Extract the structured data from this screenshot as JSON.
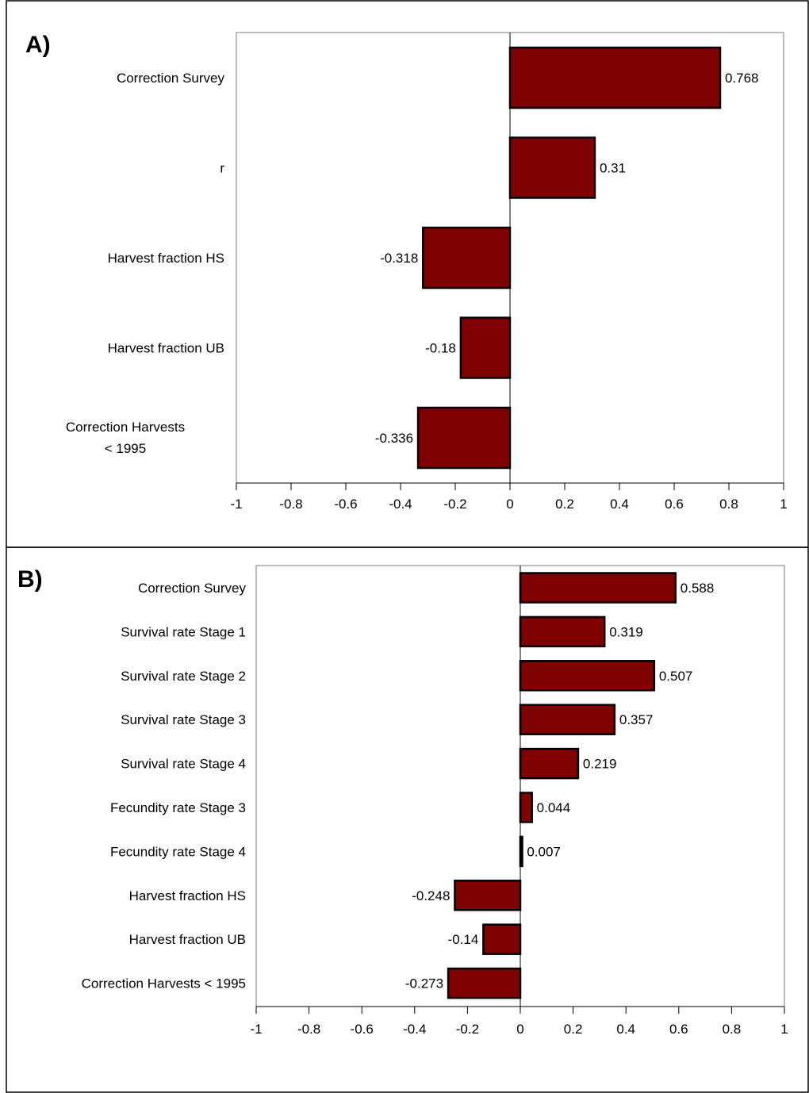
{
  "colors": {
    "bar": "#7f0000",
    "border": "#000000"
  },
  "chart_data": [
    {
      "panel_label": "A)",
      "type": "bar",
      "orientation": "horizontal",
      "title": "",
      "xlabel": "",
      "ylabel": "",
      "xlim": [
        -1,
        1
      ],
      "xticks": [
        -1,
        -0.8,
        -0.6,
        -0.4,
        -0.2,
        0,
        0.2,
        0.4,
        0.6,
        0.8,
        1
      ],
      "xtick_labels": [
        "-1",
        "-0.8",
        "-0.6",
        "-0.4",
        "-0.2",
        "0",
        "0.2",
        "0.4",
        "0.6",
        "0.8",
        "1"
      ],
      "grid": false,
      "legend": "none",
      "categories": [
        [
          "Correction Survey"
        ],
        [
          "r"
        ],
        [
          "Harvest fraction HS"
        ],
        [
          "Harvest fraction UB"
        ],
        [
          "Correction Harvests",
          "< 1995"
        ]
      ],
      "values": [
        0.768,
        0.31,
        -0.318,
        -0.18,
        -0.336
      ],
      "data_labels": [
        "0.768",
        "0.31",
        "-0.318",
        "-0.18",
        "-0.336"
      ]
    },
    {
      "panel_label": "B)",
      "type": "bar",
      "orientation": "horizontal",
      "title": "",
      "xlabel": "",
      "ylabel": "",
      "xlim": [
        -1,
        1
      ],
      "xticks": [
        -1,
        -0.8,
        -0.6,
        -0.4,
        -0.2,
        0,
        0.2,
        0.4,
        0.6,
        0.8,
        1
      ],
      "xtick_labels": [
        "-1",
        "-0.8",
        "-0.6",
        "-0.4",
        "-0.2",
        "0",
        "0.2",
        "0.4",
        "0.6",
        "0.8",
        "1"
      ],
      "grid": false,
      "legend": "none",
      "categories": [
        [
          "Correction Survey"
        ],
        [
          "Survival rate Stage 1"
        ],
        [
          "Survival rate Stage 2"
        ],
        [
          "Survival rate Stage 3"
        ],
        [
          "Survival rate Stage 4"
        ],
        [
          "Fecundity rate Stage 3"
        ],
        [
          "Fecundity rate Stage 4"
        ],
        [
          "Harvest fraction HS"
        ],
        [
          "Harvest fraction UB"
        ],
        [
          "Correction Harvests < 1995"
        ]
      ],
      "values": [
        0.588,
        0.319,
        0.507,
        0.357,
        0.219,
        0.044,
        0.007,
        -0.248,
        -0.14,
        -0.273
      ],
      "data_labels": [
        "0.588",
        "0.319",
        "0.507",
        "0.357",
        "0.219",
        "0.044",
        "0.007",
        "-0.248",
        "-0.14",
        "-0.273"
      ]
    }
  ]
}
